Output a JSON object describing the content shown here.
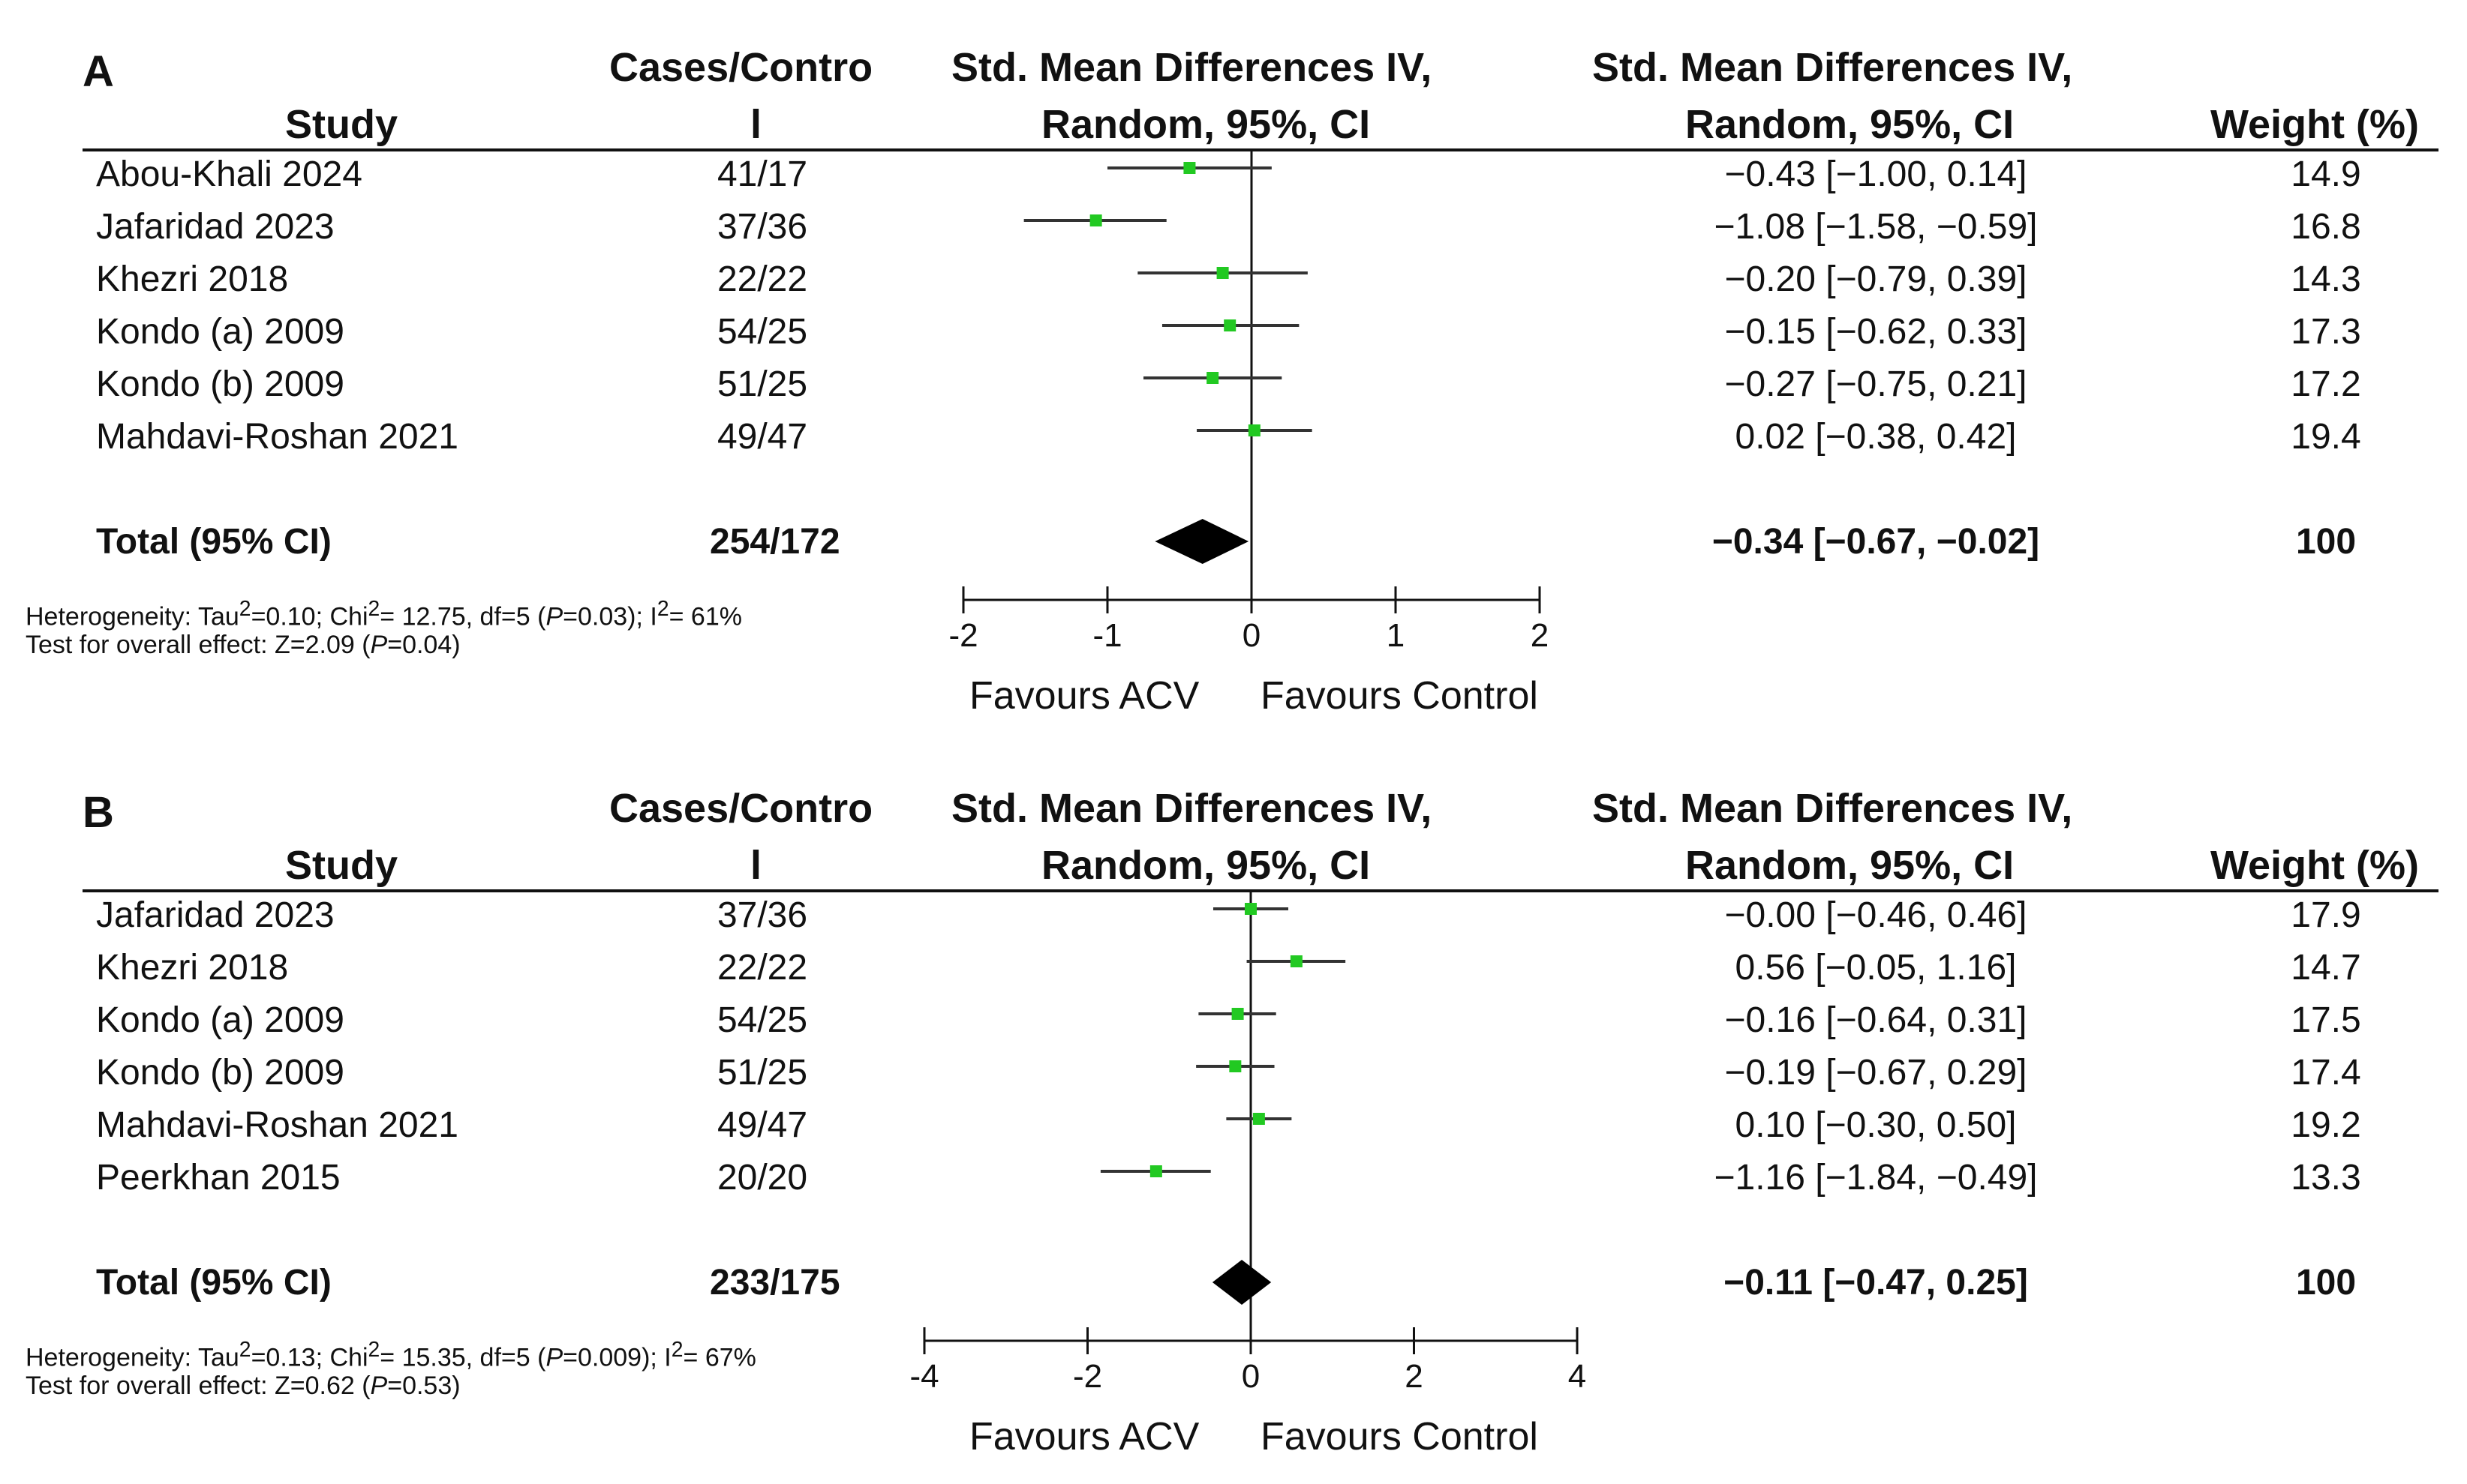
{
  "headers": {
    "study": "Study",
    "cases_line1": "Cases/Contro",
    "cases_line2": "l",
    "smd_line1": "Std. Mean Differences IV,",
    "smd_line2": "Random, 95%, CI",
    "ci_line1": "Std. Mean Differences IV,",
    "ci_line2": "Random, 95%, CI",
    "weight": "Weight (%)"
  },
  "favours": {
    "left": "Favours ACV",
    "right": "Favours Control"
  },
  "panels": [
    {
      "letter": "A",
      "heterogeneity": {
        "prefix": "Heterogeneity: Tau",
        "sup1": "2",
        "mid1": "=0.10; Chi",
        "sup2": "2",
        "mid2": "= 12.75, df=5 (",
        "p": "P",
        "mid3": "=0.03); I",
        "sup3": "2",
        "end": "= 61%"
      },
      "overall": {
        "prefix": "Test for overall effect: Z=2.09 (",
        "p": "P",
        "end": "=0.04)"
      },
      "rows": [
        {
          "study": "Abou-Khali 2024",
          "cases": "41/17",
          "ci_text": "−0.43 [−1.00,  0.14]",
          "weight": "14.9"
        },
        {
          "study": "Jafaridad 2023",
          "cases": "37/36",
          "ci_text": "−1.08 [−1.58, −0.59]",
          "weight": "16.8"
        },
        {
          "study": "Khezri 2018",
          "cases": "22/22",
          "ci_text": "−0.20 [−0.79,  0.39]",
          "weight": "14.3"
        },
        {
          "study": "Kondo (a) 2009",
          "cases": "54/25",
          "ci_text": "−0.15 [−0.62,  0.33]",
          "weight": "17.3"
        },
        {
          "study": "Kondo (b) 2009",
          "cases": "51/25",
          "ci_text": "−0.27 [−0.75,  0.21]",
          "weight": "17.2"
        },
        {
          "study": "Mahdavi-Roshan 2021",
          "cases": "49/47",
          "ci_text": "0.02 [−0.38,  0.42]",
          "weight": "19.4"
        }
      ],
      "total": {
        "label": "Total (95% CI)",
        "cases": "254/172",
        "ci_text": "−0.34 [−0.67, −0.02]",
        "weight": "100"
      }
    },
    {
      "letter": "B",
      "heterogeneity": {
        "prefix": "Heterogeneity: Tau",
        "sup1": "2",
        "mid1": "=0.13; Chi",
        "sup2": "2",
        "mid2": "= 15.35, df=5 (",
        "p": "P",
        "mid3": "=0.009); I",
        "sup3": "2",
        "end": "= 67%"
      },
      "overall": {
        "prefix": "Test for overall effect: Z=0.62 (",
        "p": "P",
        "end": "=0.53)"
      },
      "rows": [
        {
          "study": "Jafaridad 2023",
          "cases": "37/36",
          "ci_text": "−0.00 [−0.46, 0.46]",
          "weight": "17.9"
        },
        {
          "study": "Khezri 2018",
          "cases": "22/22",
          "ci_text": "0.56 [−0.05, 1.16]",
          "weight": "14.7"
        },
        {
          "study": "Kondo (a) 2009",
          "cases": "54/25",
          "ci_text": "−0.16 [−0.64, 0.31]",
          "weight": "17.5"
        },
        {
          "study": "Kondo (b) 2009",
          "cases": "51/25",
          "ci_text": "−0.19 [−0.67, 0.29]",
          "weight": "17.4"
        },
        {
          "study": "Mahdavi-Roshan 2021",
          "cases": "49/47",
          "ci_text": "0.10 [−0.30, 0.50]",
          "weight": "19.2"
        },
        {
          "study": "Peerkhan 2015",
          "cases": "20/20",
          "ci_text": "−1.16 [−1.84, −0.49]",
          "weight": "13.3"
        }
      ],
      "total": {
        "label": "Total (95% CI)",
        "cases": "233/175",
        "ci_text": "−0.11 [−0.47, 0.25]",
        "weight": "100"
      }
    }
  ],
  "colors": {
    "marker": "#22c922",
    "line": "#333333",
    "diamond": "#000000"
  },
  "chart_data": [
    {
      "type": "forest",
      "title": "A",
      "xlim": [
        -2,
        2
      ],
      "ticks": [
        -2,
        -1,
        0,
        1,
        2
      ],
      "xlabel_left": "Favours ACV",
      "xlabel_right": "Favours Control",
      "studies": [
        {
          "name": "Abou-Khali 2024",
          "smd": -0.43,
          "lower": -1.0,
          "upper": 0.14,
          "weight": 14.9
        },
        {
          "name": "Jafaridad 2023",
          "smd": -1.08,
          "lower": -1.58,
          "upper": -0.59,
          "weight": 16.8
        },
        {
          "name": "Khezri 2018",
          "smd": -0.2,
          "lower": -0.79,
          "upper": 0.39,
          "weight": 14.3
        },
        {
          "name": "Kondo (a) 2009",
          "smd": -0.15,
          "lower": -0.62,
          "upper": 0.33,
          "weight": 17.3
        },
        {
          "name": "Kondo (b) 2009",
          "smd": -0.27,
          "lower": -0.75,
          "upper": 0.21,
          "weight": 17.2
        },
        {
          "name": "Mahdavi-Roshan 2021",
          "smd": 0.02,
          "lower": -0.38,
          "upper": 0.42,
          "weight": 19.4
        }
      ],
      "total": {
        "smd": -0.34,
        "lower": -0.67,
        "upper": -0.02,
        "weight": 100
      }
    },
    {
      "type": "forest",
      "title": "B",
      "xlim": [
        -4,
        4
      ],
      "ticks": [
        -4,
        -2,
        0,
        2,
        4
      ],
      "xlabel_left": "Favours ACV",
      "xlabel_right": "Favours Control",
      "studies": [
        {
          "name": "Jafaridad 2023",
          "smd": -0.0,
          "lower": -0.46,
          "upper": 0.46,
          "weight": 17.9
        },
        {
          "name": "Khezri 2018",
          "smd": 0.56,
          "lower": -0.05,
          "upper": 1.16,
          "weight": 14.7
        },
        {
          "name": "Kondo (a) 2009",
          "smd": -0.16,
          "lower": -0.64,
          "upper": 0.31,
          "weight": 17.5
        },
        {
          "name": "Kondo (b) 2009",
          "smd": -0.19,
          "lower": -0.67,
          "upper": 0.29,
          "weight": 17.4
        },
        {
          "name": "Mahdavi-Roshan 2021",
          "smd": 0.1,
          "lower": -0.3,
          "upper": 0.5,
          "weight": 19.2
        },
        {
          "name": "Peerkhan 2015",
          "smd": -1.16,
          "lower": -1.84,
          "upper": -0.49,
          "weight": 13.3
        }
      ],
      "total": {
        "smd": -0.11,
        "lower": -0.47,
        "upper": 0.25,
        "weight": 100
      }
    }
  ]
}
